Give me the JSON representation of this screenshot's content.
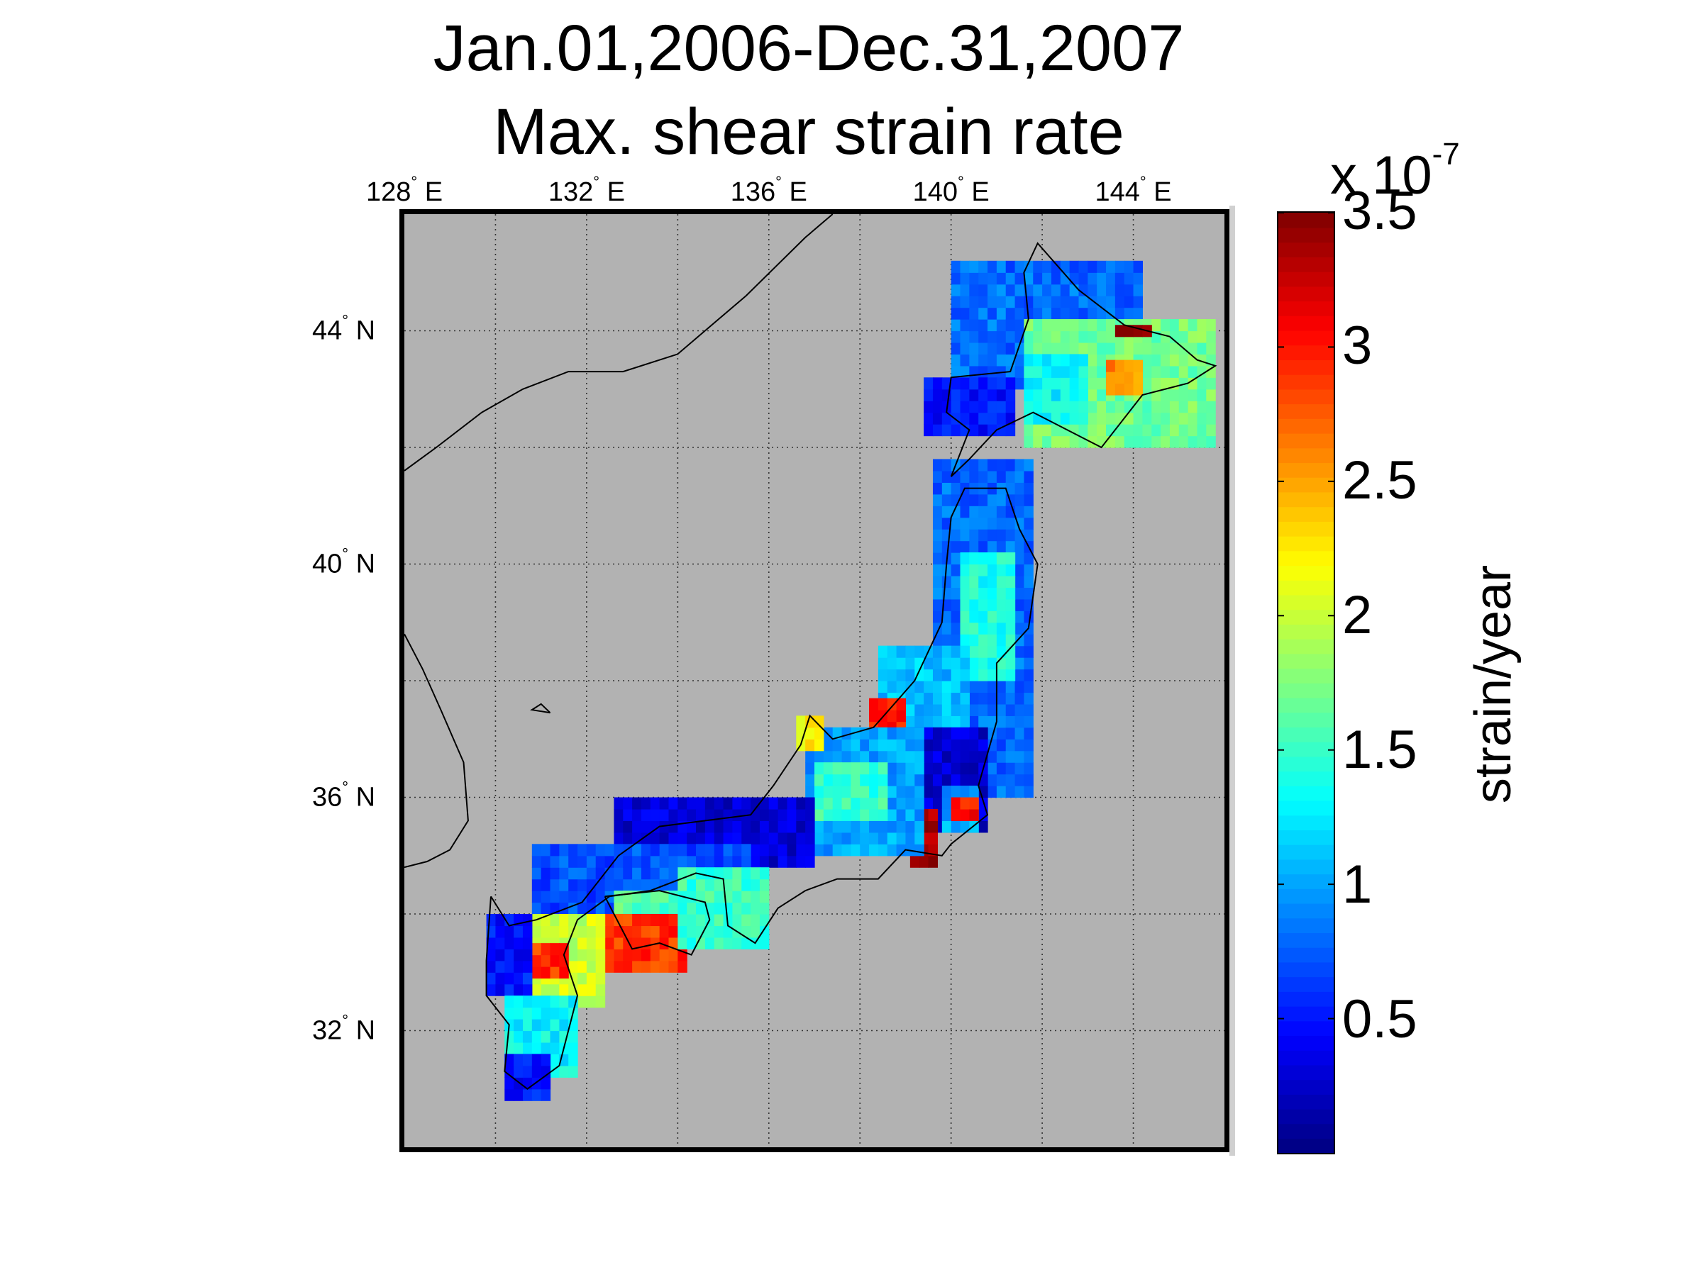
{
  "title": {
    "line1": "Jan.01,2006-Dec.31,2007",
    "line2": "Max. shear strain rate"
  },
  "map": {
    "lon_ticks": [
      {
        "value": 128,
        "label": "128",
        "suffix": " E"
      },
      {
        "value": 132,
        "label": "132",
        "suffix": " E"
      },
      {
        "value": 136,
        "label": "136",
        "suffix": " E"
      },
      {
        "value": 140,
        "label": "140",
        "suffix": " E"
      },
      {
        "value": 144,
        "label": "144",
        "suffix": " E"
      }
    ],
    "lat_ticks": [
      {
        "value": 44,
        "label": "44",
        "suffix": " N"
      },
      {
        "value": 40,
        "label": "40",
        "suffix": " N"
      },
      {
        "value": 36,
        "label": "36",
        "suffix": " N"
      },
      {
        "value": 32,
        "label": "32",
        "suffix": " N"
      }
    ],
    "degree_symbol": "°",
    "lon_range": [
      128,
      146
    ],
    "lat_range": [
      30,
      46
    ],
    "grid": "dotted",
    "background_color": "#b2b2b2"
  },
  "colorbar": {
    "label": "strain/year",
    "multiplier_base": "x 10",
    "multiplier_exp": "-7",
    "range": [
      0,
      3.5
    ],
    "ticks": [
      {
        "value": 3.5,
        "label": "3.5"
      },
      {
        "value": 3,
        "label": "3"
      },
      {
        "value": 2.5,
        "label": "2.5"
      },
      {
        "value": 2,
        "label": "2"
      },
      {
        "value": 1.5,
        "label": "1.5"
      },
      {
        "value": 1,
        "label": "1"
      },
      {
        "value": 0.5,
        "label": "0.5"
      }
    ],
    "colormap": "jet",
    "steps": 64
  },
  "chart_data": {
    "type": "heatmap",
    "title": "Jan.01,2006-Dec.31,2007 Max. shear strain rate",
    "colorbar_label": "strain/year",
    "units_multiplier": "x 10^-7",
    "value_range": [
      0,
      3.5
    ],
    "cell_size_deg": 0.2,
    "regions": [
      {
        "lon": [
          140.0,
          144.2
        ],
        "lat": [
          43.0,
          45.2
        ],
        "value": 0.8
      },
      {
        "lon": [
          141.6,
          145.8
        ],
        "lat": [
          42.0,
          44.2
        ],
        "value": 1.7
      },
      {
        "lon": [
          141.6,
          143.0
        ],
        "lat": [
          42.4,
          43.6
        ],
        "value": 1.3
      },
      {
        "lon": [
          143.4,
          144.2
        ],
        "lat": [
          42.9,
          43.4
        ],
        "value": 2.6
      },
      {
        "lon": [
          143.6,
          144.4
        ],
        "lat": [
          43.9,
          44.1
        ],
        "value": 3.4
      },
      {
        "lon": [
          139.4,
          141.4
        ],
        "lat": [
          42.2,
          43.2
        ],
        "value": 0.5
      },
      {
        "lon": [
          139.6,
          141.8
        ],
        "lat": [
          36.0,
          41.8
        ],
        "value": 0.8
      },
      {
        "lon": [
          140.2,
          141.4
        ],
        "lat": [
          38.0,
          40.2
        ],
        "value": 1.4
      },
      {
        "lon": [
          138.4,
          140.4
        ],
        "lat": [
          37.2,
          38.5
        ],
        "value": 1.1
      },
      {
        "lon": [
          138.8,
          140.8
        ],
        "lat": [
          35.4,
          37.2
        ],
        "value": 0.3
      },
      {
        "lon": [
          138.2,
          139.0
        ],
        "lat": [
          36.9,
          37.6
        ],
        "value": 3.0
      },
      {
        "lon": [
          139.8,
          140.6
        ],
        "lat": [
          35.4,
          36.2
        ],
        "value": 1.0
      },
      {
        "lon": [
          139.1,
          139.7
        ],
        "lat": [
          34.8,
          35.7
        ],
        "value": 3.4
      },
      {
        "lon": [
          140.0,
          140.5
        ],
        "lat": [
          35.6,
          36.0
        ],
        "value": 3.0
      },
      {
        "lon": [
          136.8,
          139.4
        ],
        "lat": [
          35.0,
          37.2
        ],
        "value": 1.0
      },
      {
        "lon": [
          137.0,
          138.6
        ],
        "lat": [
          35.6,
          36.6
        ],
        "value": 1.5
      },
      {
        "lon": [
          136.6,
          137.2
        ],
        "lat": [
          36.8,
          37.4
        ],
        "value": 2.2
      },
      {
        "lon": [
          132.6,
          137.0
        ],
        "lat": [
          34.8,
          36.0
        ],
        "value": 0.3
      },
      {
        "lon": [
          130.8,
          135.6
        ],
        "lat": [
          33.8,
          35.2
        ],
        "value": 0.7
      },
      {
        "lon": [
          132.6,
          135.2
        ],
        "lat": [
          33.6,
          34.4
        ],
        "value": 1.6
      },
      {
        "lon": [
          132.4,
          134.2
        ],
        "lat": [
          33.0,
          34.0
        ],
        "value": 2.9
      },
      {
        "lon": [
          134.0,
          136.0
        ],
        "lat": [
          33.4,
          34.8
        ],
        "value": 1.5
      },
      {
        "lon": [
          130.4,
          132.4
        ],
        "lat": [
          32.4,
          34.0
        ],
        "value": 2.0
      },
      {
        "lon": [
          130.8,
          131.6
        ],
        "lat": [
          32.9,
          33.5
        ],
        "value": 2.9
      },
      {
        "lon": [
          129.8,
          130.8
        ],
        "lat": [
          32.6,
          34.0
        ],
        "value": 0.5
      },
      {
        "lon": [
          130.2,
          131.8
        ],
        "lat": [
          31.2,
          32.6
        ],
        "value": 1.3
      },
      {
        "lon": [
          130.2,
          131.2
        ],
        "lat": [
          30.8,
          31.6
        ],
        "value": 0.5
      }
    ]
  }
}
